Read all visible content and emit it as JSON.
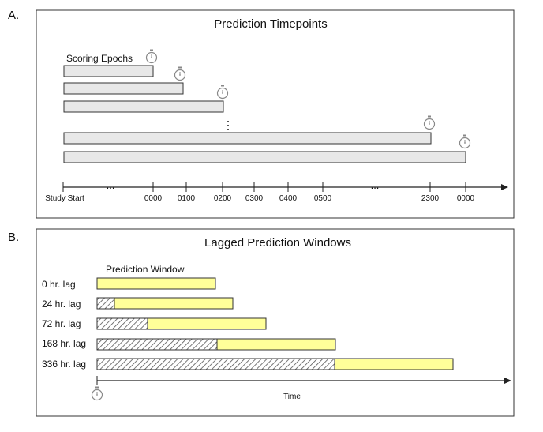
{
  "panel_a": {
    "label": "A.",
    "title": "Prediction Timepoints",
    "epochs_label": "Scoring Epochs",
    "vdots": "⋮",
    "axis_ticks": [
      "Study Start",
      "0000",
      "0100",
      "0200",
      "0300",
      "0400",
      "0500",
      "2300",
      "0000"
    ],
    "ellipsis": "...",
    "bar_fill": "#e8e8e8",
    "stopwatch_icon": "stopwatch-icon"
  },
  "panel_b": {
    "label": "B.",
    "title": "Lagged Prediction Windows",
    "window_label": "Prediction Window",
    "rows": [
      {
        "label": "0 hr. lag"
      },
      {
        "label": "24 hr. lag"
      },
      {
        "label": "72 hr. lag"
      },
      {
        "label": "168 hr. lag"
      },
      {
        "label": "336 hr. lag"
      }
    ],
    "time_label": "Time",
    "window_fill": "#ffff99",
    "stopwatch_icon": "stopwatch-icon"
  }
}
